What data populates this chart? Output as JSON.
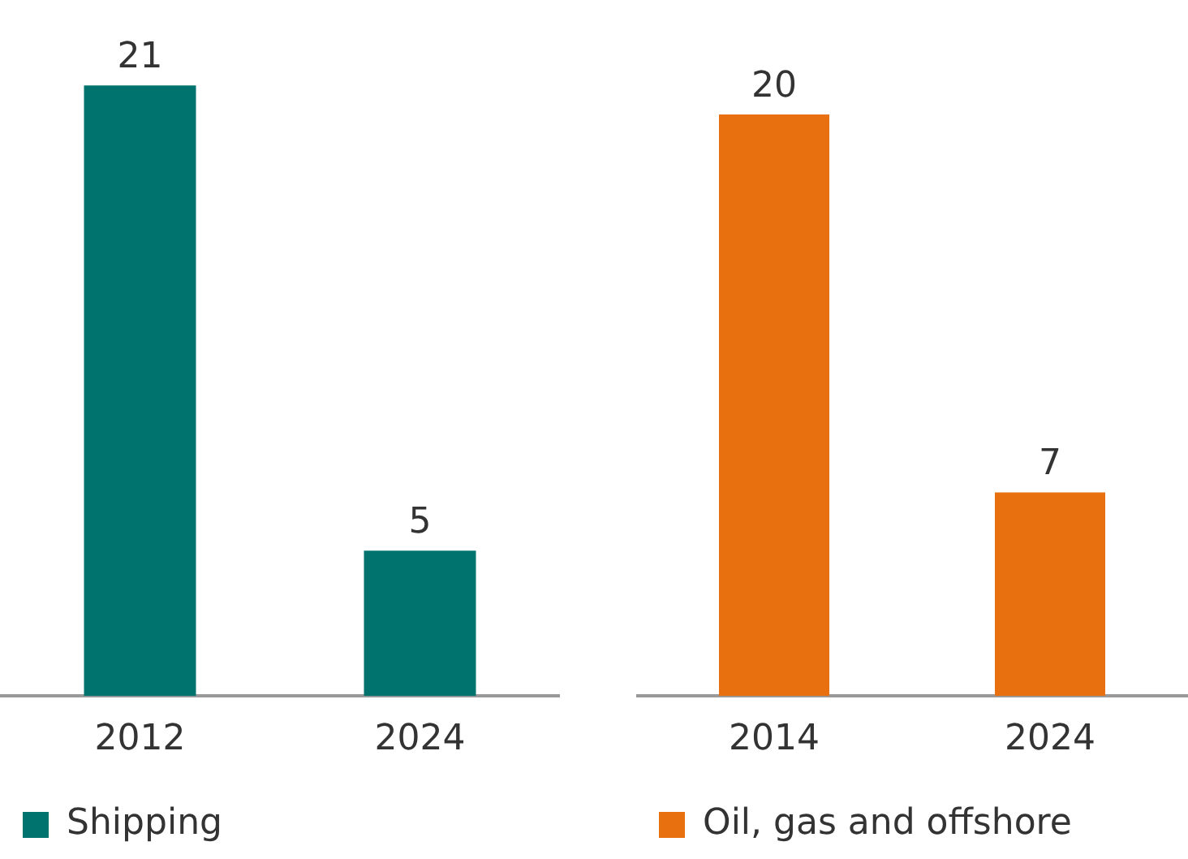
{
  "chart_data": [
    {
      "type": "bar",
      "categories": [
        "2012",
        "2024"
      ],
      "series": [
        {
          "name": "Shipping",
          "color": "#00736f",
          "values": [
            21,
            5
          ]
        }
      ],
      "data_labels": true,
      "legend": "bottom",
      "grid": false
    },
    {
      "type": "bar",
      "categories": [
        "2014",
        "2024"
      ],
      "series": [
        {
          "name": "Oil, gas and offshore",
          "color": "#e8700f",
          "values": [
            20,
            7
          ]
        }
      ],
      "data_labels": true,
      "legend": "bottom",
      "grid": false
    }
  ]
}
